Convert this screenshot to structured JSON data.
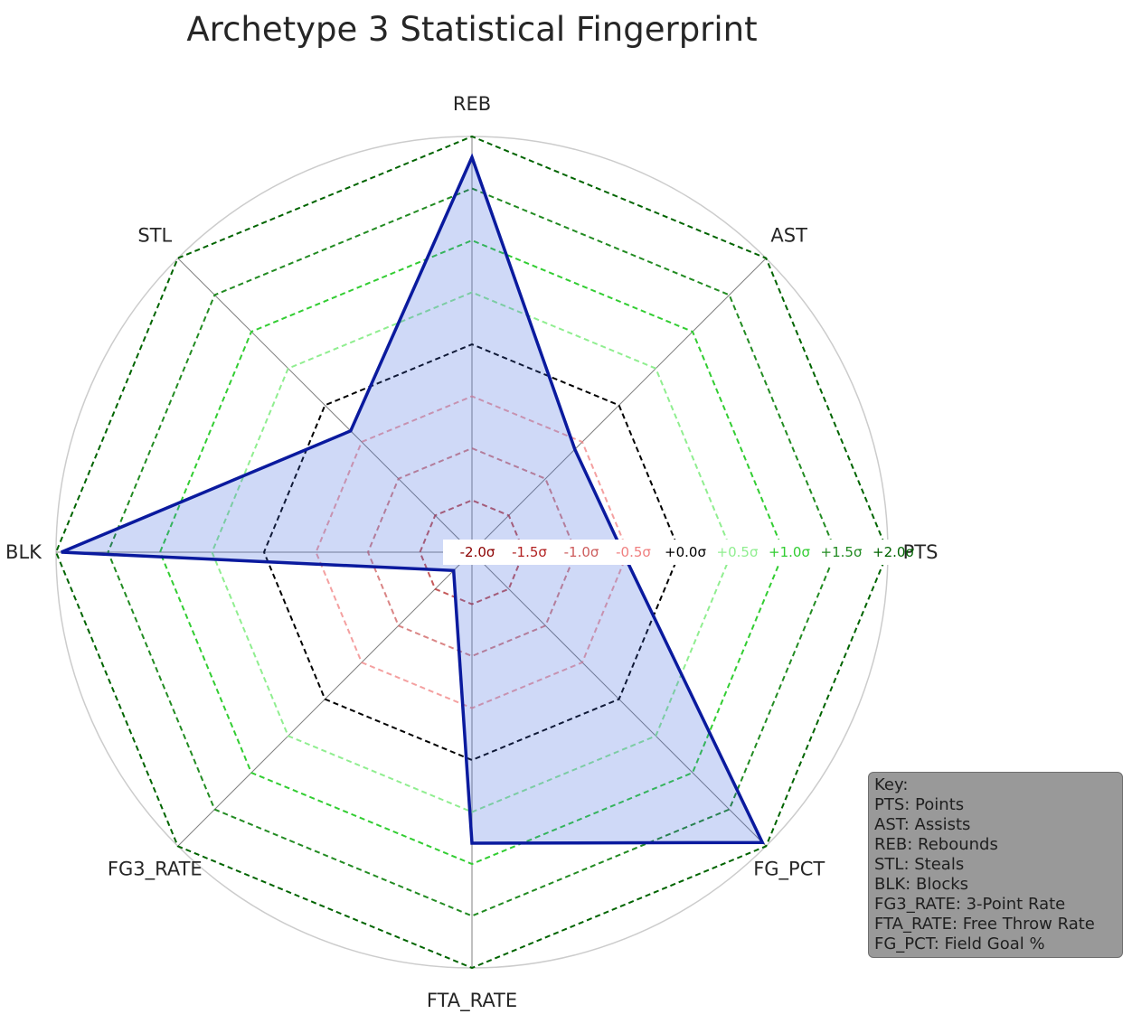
{
  "chart_data": {
    "type": "radar",
    "title": "Archetype 3 Statistical Fingerprint",
    "axes": [
      "PTS",
      "AST",
      "REB",
      "STL",
      "BLK",
      "FG3_RATE",
      "FTA_RATE",
      "FG_PCT"
    ],
    "rlim": [
      -2.0,
      2.0
    ],
    "values": [
      -0.55,
      -0.6,
      1.8,
      -0.35,
      1.95,
      -1.75,
      0.8,
      1.95
    ],
    "gridlines": [
      {
        "value": -2.0,
        "label": "-2.0σ",
        "color": "#8b0000"
      },
      {
        "value": -1.5,
        "label": "-1.5σ",
        "color": "#b22222"
      },
      {
        "value": -1.0,
        "label": "-1.0σ",
        "color": "#cd5c5c"
      },
      {
        "value": -0.5,
        "label": "-0.5σ",
        "color": "#f08080"
      },
      {
        "value": 0.0,
        "label": "+0.0σ",
        "color": "#000000"
      },
      {
        "value": 0.5,
        "label": "+0.5σ",
        "color": "#90ee90"
      },
      {
        "value": 1.0,
        "label": "+1.0σ",
        "color": "#32cd32"
      },
      {
        "value": 1.5,
        "label": "+1.5σ",
        "color": "#228b22"
      },
      {
        "value": 2.0,
        "label": "+2.0σ",
        "color": "#006400"
      }
    ],
    "line_color": "#0a1a9e",
    "fill_color": "#4169e1",
    "legend_placement": "bottom-right"
  },
  "key": {
    "title": "Key:",
    "lines": [
      "PTS: Points",
      "AST: Assists",
      "REB: Rebounds",
      "STL: Steals",
      "BLK: Blocks",
      "FG3_RATE: 3-Point Rate",
      "FTA_RATE: Free Throw Rate",
      "FG_PCT: Field Goal %"
    ]
  }
}
